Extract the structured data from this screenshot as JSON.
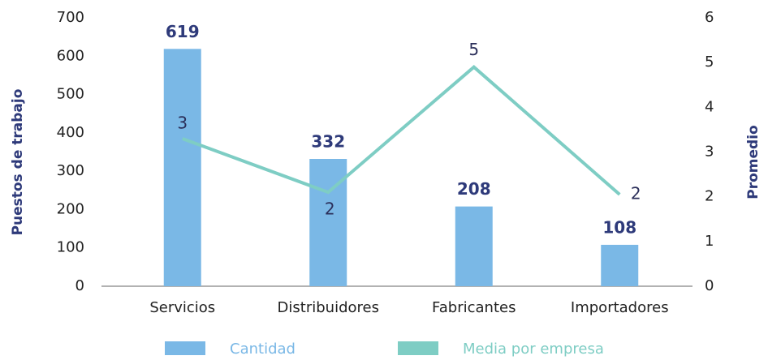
{
  "chart_data": {
    "type": "bar",
    "categories": [
      "Servicios",
      "Distribuidores",
      "Fabricantes",
      "Importadores"
    ],
    "series": [
      {
        "name": "Cantidad",
        "type": "bar",
        "color": "#7ab8e6",
        "values": [
          619,
          332,
          208,
          108
        ]
      },
      {
        "name": "Media por empresa",
        "type": "line",
        "axis": "y2",
        "color": "#7ecdc4",
        "values": [
          3.3,
          2.1,
          4.9,
          2.05
        ],
        "value_labels": [
          "3",
          "2",
          "5",
          "2"
        ]
      }
    ],
    "ylabel": "Puestos de trabajo",
    "y2label": "Promedio",
    "ylim": [
      0,
      700
    ],
    "yticks": [
      0,
      100,
      200,
      300,
      400,
      500,
      600,
      700
    ],
    "y2lim": [
      0,
      6
    ],
    "y2ticks": [
      0,
      1,
      2,
      3,
      4,
      5,
      6
    ],
    "legend": "bottom"
  }
}
